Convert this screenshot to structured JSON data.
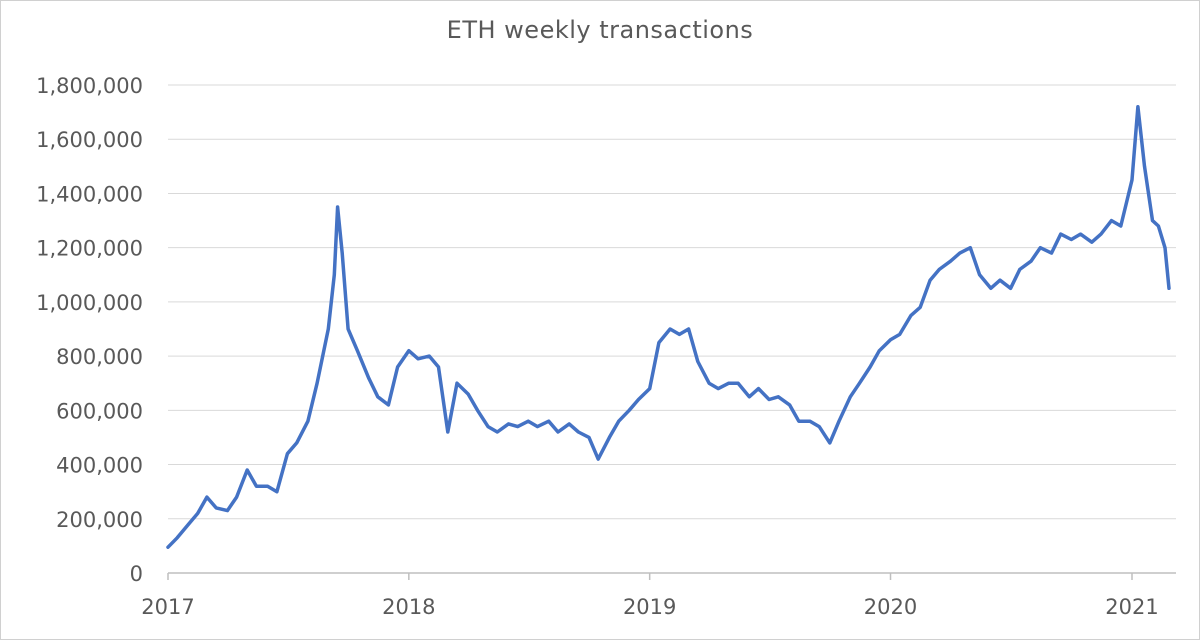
{
  "chart_data": {
    "type": "line",
    "title": "ETH weekly transactions",
    "xlabel": "",
    "ylabel": "",
    "x_tick_labels": [
      "2017",
      "2018",
      "2019",
      "2020",
      "2021"
    ],
    "y_tick_labels": [
      "0",
      "200,000",
      "400,000",
      "600,000",
      "800,000",
      "1,000,000",
      "1,200,000",
      "1,400,000",
      "1,600,000",
      "1,800,000"
    ],
    "ylim": [
      0,
      1800000
    ],
    "xlim": [
      "2017-01-01",
      "2021-03-01"
    ],
    "grid": "horizontal",
    "legend": "none",
    "series_color": "#4472C4",
    "series": [
      {
        "points": [
          [
            "2017-01-01",
            95000
          ],
          [
            "2017-01-15",
            130000
          ],
          [
            "2017-02-01",
            180000
          ],
          [
            "2017-02-15",
            220000
          ],
          [
            "2017-03-01",
            280000
          ],
          [
            "2017-03-15",
            240000
          ],
          [
            "2017-04-01",
            230000
          ],
          [
            "2017-04-15",
            280000
          ],
          [
            "2017-05-01",
            380000
          ],
          [
            "2017-05-15",
            320000
          ],
          [
            "2017-06-01",
            320000
          ],
          [
            "2017-06-15",
            300000
          ],
          [
            "2017-07-01",
            440000
          ],
          [
            "2017-07-15",
            480000
          ],
          [
            "2017-08-01",
            560000
          ],
          [
            "2017-08-15",
            700000
          ],
          [
            "2017-09-01",
            900000
          ],
          [
            "2017-09-10",
            1100000
          ],
          [
            "2017-09-15",
            1350000
          ],
          [
            "2017-09-22",
            1180000
          ],
          [
            "2017-10-01",
            900000
          ],
          [
            "2017-10-15",
            820000
          ],
          [
            "2017-11-01",
            720000
          ],
          [
            "2017-11-15",
            650000
          ],
          [
            "2017-12-01",
            620000
          ],
          [
            "2017-12-15",
            760000
          ],
          [
            "2018-01-01",
            820000
          ],
          [
            "2018-01-15",
            790000
          ],
          [
            "2018-02-01",
            800000
          ],
          [
            "2018-02-15",
            760000
          ],
          [
            "2018-03-01",
            520000
          ],
          [
            "2018-03-15",
            700000
          ],
          [
            "2018-04-01",
            660000
          ],
          [
            "2018-04-15",
            600000
          ],
          [
            "2018-05-01",
            540000
          ],
          [
            "2018-05-15",
            520000
          ],
          [
            "2018-06-01",
            550000
          ],
          [
            "2018-06-15",
            540000
          ],
          [
            "2018-07-01",
            560000
          ],
          [
            "2018-07-15",
            540000
          ],
          [
            "2018-08-01",
            560000
          ],
          [
            "2018-08-15",
            520000
          ],
          [
            "2018-09-01",
            550000
          ],
          [
            "2018-09-15",
            520000
          ],
          [
            "2018-10-01",
            500000
          ],
          [
            "2018-10-15",
            420000
          ],
          [
            "2018-11-01",
            500000
          ],
          [
            "2018-11-15",
            560000
          ],
          [
            "2018-12-01",
            600000
          ],
          [
            "2018-12-15",
            640000
          ],
          [
            "2019-01-01",
            680000
          ],
          [
            "2019-01-15",
            850000
          ],
          [
            "2019-02-01",
            900000
          ],
          [
            "2019-02-15",
            880000
          ],
          [
            "2019-03-01",
            900000
          ],
          [
            "2019-03-15",
            780000
          ],
          [
            "2019-04-01",
            700000
          ],
          [
            "2019-04-15",
            680000
          ],
          [
            "2019-05-01",
            700000
          ],
          [
            "2019-05-15",
            700000
          ],
          [
            "2019-06-01",
            650000
          ],
          [
            "2019-06-15",
            680000
          ],
          [
            "2019-07-01",
            640000
          ],
          [
            "2019-07-15",
            650000
          ],
          [
            "2019-08-01",
            620000
          ],
          [
            "2019-08-15",
            560000
          ],
          [
            "2019-09-01",
            560000
          ],
          [
            "2019-09-15",
            540000
          ],
          [
            "2019-10-01",
            480000
          ],
          [
            "2019-10-15",
            560000
          ],
          [
            "2019-11-01",
            650000
          ],
          [
            "2019-11-15",
            700000
          ],
          [
            "2019-12-01",
            760000
          ],
          [
            "2019-12-15",
            820000
          ],
          [
            "2020-01-01",
            860000
          ],
          [
            "2020-01-15",
            880000
          ],
          [
            "2020-02-01",
            950000
          ],
          [
            "2020-02-15",
            980000
          ],
          [
            "2020-03-01",
            1080000
          ],
          [
            "2020-03-15",
            1120000
          ],
          [
            "2020-04-01",
            1150000
          ],
          [
            "2020-04-15",
            1180000
          ],
          [
            "2020-05-01",
            1200000
          ],
          [
            "2020-05-15",
            1100000
          ],
          [
            "2020-06-01",
            1050000
          ],
          [
            "2020-06-15",
            1080000
          ],
          [
            "2020-07-01",
            1050000
          ],
          [
            "2020-07-15",
            1120000
          ],
          [
            "2020-08-01",
            1150000
          ],
          [
            "2020-08-15",
            1200000
          ],
          [
            "2020-09-01",
            1180000
          ],
          [
            "2020-09-15",
            1250000
          ],
          [
            "2020-10-01",
            1230000
          ],
          [
            "2020-10-15",
            1250000
          ],
          [
            "2020-11-01",
            1220000
          ],
          [
            "2020-11-15",
            1250000
          ],
          [
            "2020-12-01",
            1300000
          ],
          [
            "2020-12-15",
            1280000
          ],
          [
            "2021-01-01",
            1450000
          ],
          [
            "2021-01-10",
            1720000
          ],
          [
            "2021-01-20",
            1500000
          ],
          [
            "2021-02-01",
            1300000
          ],
          [
            "2021-02-10",
            1280000
          ],
          [
            "2021-02-20",
            1200000
          ],
          [
            "2021-02-26",
            1050000
          ]
        ]
      }
    ]
  }
}
